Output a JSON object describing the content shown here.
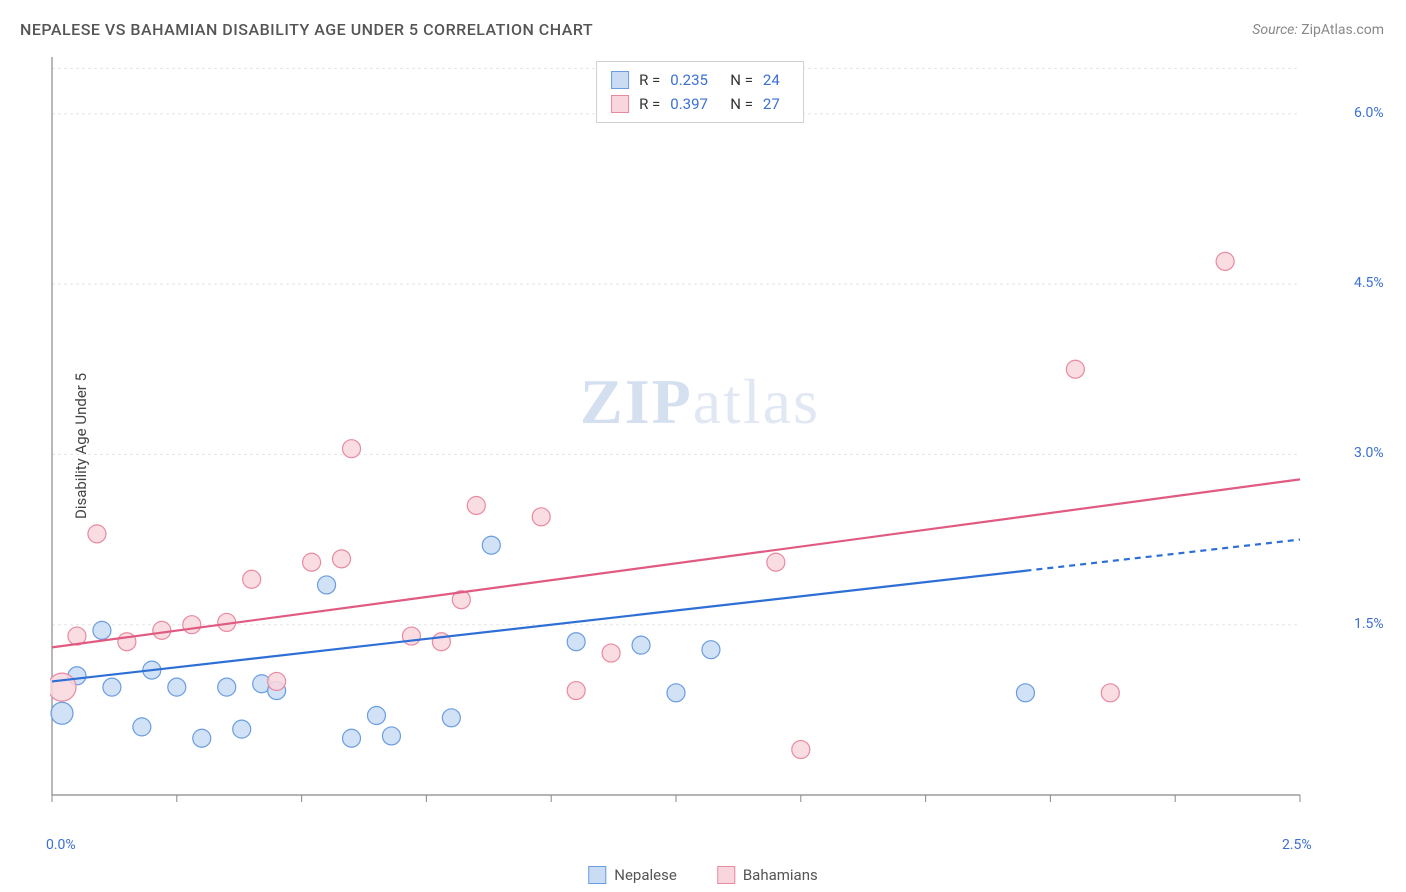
{
  "title": "NEPALESE VS BAHAMIAN DISABILITY AGE UNDER 5 CORRELATION CHART",
  "source_label": "Source:",
  "source_name": "ZipAtlas.com",
  "ylabel": "Disability Age Under 5",
  "watermark": {
    "bold": "ZIP",
    "light": "atlas"
  },
  "chart": {
    "type": "scatter",
    "xlim": [
      0.0,
      2.5
    ],
    "ylim": [
      0.0,
      6.5
    ],
    "xticks": [
      0.0,
      0.25,
      0.5,
      0.75,
      1.0,
      1.25,
      1.5,
      1.75,
      2.0,
      2.25,
      2.5
    ],
    "xtick_labels": {
      "0": "0.0%",
      "10": "2.5%"
    },
    "yticks": [
      1.5,
      3.0,
      4.5,
      6.0
    ],
    "ytick_labels": [
      "1.5%",
      "3.0%",
      "4.5%",
      "6.0%"
    ],
    "grid_color": "#e5e5e5",
    "axis_color": "#888888",
    "background_color": "#ffffff",
    "marker_radius": 9,
    "marker_stroke_width": 1.2,
    "trend_line_width": 2.2,
    "series": [
      {
        "name": "Nepalese",
        "fill": "#c9dcf4",
        "stroke": "#6a9de0",
        "line_color": "#2e6fd6",
        "r_value": "0.235",
        "n_value": "24",
        "trend": {
          "x1": 0.0,
          "y1": 1.0,
          "x2": 2.5,
          "y2": 2.25,
          "dash_from_x": 1.95
        },
        "points": [
          {
            "x": 0.02,
            "y": 0.72,
            "r": 11
          },
          {
            "x": 0.05,
            "y": 1.05
          },
          {
            "x": 0.1,
            "y": 1.45
          },
          {
            "x": 0.12,
            "y": 0.95
          },
          {
            "x": 0.18,
            "y": 0.6
          },
          {
            "x": 0.2,
            "y": 1.1
          },
          {
            "x": 0.25,
            "y": 0.95
          },
          {
            "x": 0.3,
            "y": 0.5
          },
          {
            "x": 0.35,
            "y": 0.95
          },
          {
            "x": 0.38,
            "y": 0.58
          },
          {
            "x": 0.42,
            "y": 0.98
          },
          {
            "x": 0.45,
            "y": 0.92
          },
          {
            "x": 0.55,
            "y": 1.85
          },
          {
            "x": 0.6,
            "y": 0.5
          },
          {
            "x": 0.65,
            "y": 0.7
          },
          {
            "x": 0.68,
            "y": 0.52
          },
          {
            "x": 0.8,
            "y": 0.68
          },
          {
            "x": 0.88,
            "y": 2.2
          },
          {
            "x": 1.05,
            "y": 1.35
          },
          {
            "x": 1.18,
            "y": 1.32
          },
          {
            "x": 1.25,
            "y": 0.9
          },
          {
            "x": 1.32,
            "y": 1.28
          },
          {
            "x": 1.95,
            "y": 0.9
          }
        ]
      },
      {
        "name": "Bahamians",
        "fill": "#f9d6de",
        "stroke": "#e88aa0",
        "line_color": "#e05a82",
        "r_value": "0.397",
        "n_value": "27",
        "trend": {
          "x1": 0.0,
          "y1": 1.3,
          "x2": 2.5,
          "y2": 2.78
        },
        "points": [
          {
            "x": 0.02,
            "y": 0.95,
            "r": 14
          },
          {
            "x": 0.05,
            "y": 1.4
          },
          {
            "x": 0.09,
            "y": 2.3
          },
          {
            "x": 0.15,
            "y": 1.35
          },
          {
            "x": 0.22,
            "y": 1.45
          },
          {
            "x": 0.28,
            "y": 1.5
          },
          {
            "x": 0.35,
            "y": 1.52
          },
          {
            "x": 0.4,
            "y": 1.9
          },
          {
            "x": 0.45,
            "y": 1.0
          },
          {
            "x": 0.52,
            "y": 2.05
          },
          {
            "x": 0.58,
            "y": 2.08
          },
          {
            "x": 0.6,
            "y": 3.05
          },
          {
            "x": 0.72,
            "y": 1.4
          },
          {
            "x": 0.78,
            "y": 1.35
          },
          {
            "x": 0.82,
            "y": 1.72
          },
          {
            "x": 0.85,
            "y": 2.55
          },
          {
            "x": 0.98,
            "y": 2.45
          },
          {
            "x": 1.05,
            "y": 0.92
          },
          {
            "x": 1.12,
            "y": 1.25
          },
          {
            "x": 1.45,
            "y": 2.05
          },
          {
            "x": 1.5,
            "y": 0.4
          },
          {
            "x": 2.05,
            "y": 3.75
          },
          {
            "x": 2.12,
            "y": 0.9
          },
          {
            "x": 2.35,
            "y": 4.7
          }
        ]
      }
    ]
  },
  "legend_bottom": [
    {
      "label": "Nepalese",
      "fill": "#c9dcf4",
      "stroke": "#6a9de0"
    },
    {
      "label": "Bahamians",
      "fill": "#f9d6de",
      "stroke": "#e88aa0"
    }
  ]
}
